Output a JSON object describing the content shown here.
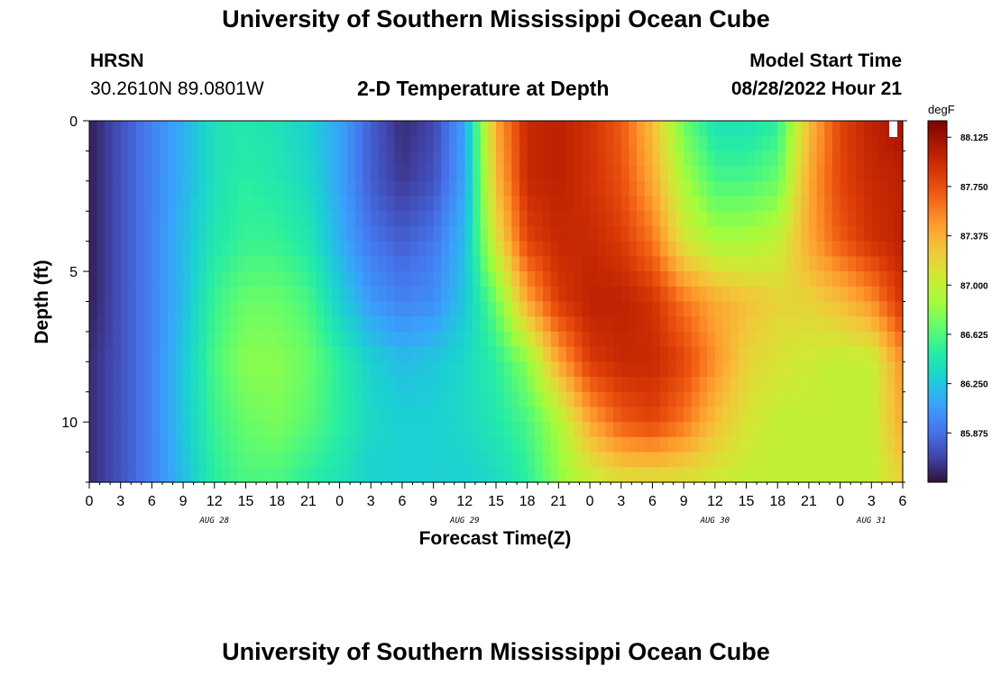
{
  "header": {
    "title": "University of Southern Mississippi Ocean Cube",
    "station": "HRSN",
    "coords": "30.2610N  89.0801W",
    "subtitle": "2-D Temperature at Depth",
    "model_label": "Model Start Time",
    "model_time": "08/28/2022 Hour 21"
  },
  "footer": {
    "title_repeat": "University of Southern Mississippi Ocean Cube"
  },
  "colorbar": {
    "unit": "degF",
    "ticks": [
      "88.125",
      "87.750",
      "87.375",
      "87.000",
      "86.625",
      "86.250",
      "85.875"
    ],
    "tick_values": [
      88.125,
      87.75,
      87.375,
      87.0,
      86.625,
      86.25,
      85.875
    ],
    "min": 85.5,
    "max": 88.25,
    "colors": [
      "#30123b",
      "#4145ab",
      "#4675ed",
      "#39a2fc",
      "#1bcfd4",
      "#24eca6",
      "#61fc6c",
      "#a4fc3b",
      "#d1e834",
      "#f3c63a",
      "#fe9b2d",
      "#f36315",
      "#d93806",
      "#b11901",
      "#7a0403"
    ]
  },
  "chart_data": {
    "type": "heatmap",
    "title": "2-D Temperature at Depth",
    "xlabel": "Forecast Time(Z)",
    "ylabel": "Depth (ft)",
    "x_tick_labels": [
      "0",
      "3",
      "6",
      "9",
      "12",
      "15",
      "18",
      "21",
      "0",
      "3",
      "6",
      "9",
      "12",
      "15",
      "18",
      "21",
      "0",
      "3",
      "6",
      "9",
      "12",
      "15",
      "18",
      "21",
      "0",
      "3",
      "6"
    ],
    "date_labels": [
      {
        "label": "AUG 28",
        "hour": 12
      },
      {
        "label": "AUG 29",
        "hour": 36
      },
      {
        "label": "AUG 30",
        "hour": 60
      },
      {
        "label": "AUG 31",
        "hour": 75
      }
    ],
    "x_range_hours": [
      0,
      78
    ],
    "y_ticks": [
      0,
      5,
      10
    ],
    "y_range_ft": [
      0,
      12
    ],
    "units": "degF",
    "depths_ft": [
      0,
      2,
      4,
      6,
      8,
      10,
      12
    ],
    "hours": [
      0,
      3,
      6,
      9,
      12,
      15,
      18,
      21,
      24,
      27,
      30,
      33,
      36,
      39,
      42,
      45,
      48,
      51,
      54,
      57,
      60,
      63,
      66,
      69,
      72,
      75,
      78
    ],
    "temperature": [
      [
        85.55,
        85.75,
        85.95,
        86.15,
        86.4,
        86.45,
        86.4,
        86.3,
        86.1,
        85.8,
        85.6,
        85.7,
        86.1,
        87.4,
        87.95,
        88.0,
        87.9,
        87.7,
        87.3,
        86.7,
        86.4,
        86.4,
        86.5,
        87.3,
        87.8,
        88.0,
        88.1
      ],
      [
        85.55,
        85.75,
        85.95,
        86.15,
        86.4,
        86.5,
        86.45,
        86.35,
        86.1,
        85.8,
        85.65,
        85.75,
        86.1,
        87.3,
        87.95,
        88.0,
        87.9,
        87.75,
        87.4,
        86.9,
        86.6,
        86.6,
        86.7,
        87.4,
        87.8,
        87.95,
        88.0
      ],
      [
        85.55,
        85.75,
        85.95,
        86.2,
        86.45,
        86.55,
        86.55,
        86.45,
        86.15,
        85.9,
        85.8,
        85.9,
        86.2,
        87.1,
        87.8,
        87.95,
        87.95,
        87.85,
        87.6,
        87.1,
        86.9,
        86.9,
        87.0,
        87.4,
        87.7,
        87.9,
        88.0
      ],
      [
        85.55,
        85.75,
        85.95,
        86.2,
        86.55,
        86.7,
        86.7,
        86.6,
        86.3,
        86.05,
        85.95,
        86.0,
        86.25,
        86.7,
        87.4,
        87.85,
        88.0,
        88.0,
        87.9,
        87.6,
        87.4,
        87.3,
        87.2,
        87.2,
        87.3,
        87.5,
        87.9
      ],
      [
        85.6,
        85.75,
        85.95,
        86.25,
        86.6,
        86.8,
        86.8,
        86.7,
        86.5,
        86.3,
        86.2,
        86.25,
        86.35,
        86.5,
        86.8,
        87.4,
        87.85,
        87.95,
        87.95,
        87.8,
        87.5,
        87.2,
        87.1,
        87.05,
        87.0,
        87.0,
        87.5
      ],
      [
        85.6,
        85.75,
        85.95,
        86.25,
        86.55,
        86.7,
        86.75,
        86.65,
        86.5,
        86.35,
        86.3,
        86.3,
        86.35,
        86.45,
        86.6,
        86.9,
        87.4,
        87.7,
        87.8,
        87.6,
        87.3,
        87.1,
        87.0,
        87.0,
        87.0,
        87.0,
        87.4
      ],
      [
        85.6,
        85.75,
        85.95,
        86.2,
        86.5,
        86.6,
        86.6,
        86.5,
        86.4,
        86.3,
        86.3,
        86.3,
        86.3,
        86.35,
        86.5,
        86.8,
        87.0,
        87.1,
        87.1,
        87.1,
        87.05,
        87.0,
        87.0,
        87.0,
        87.0,
        87.0,
        87.2
      ]
    ]
  }
}
